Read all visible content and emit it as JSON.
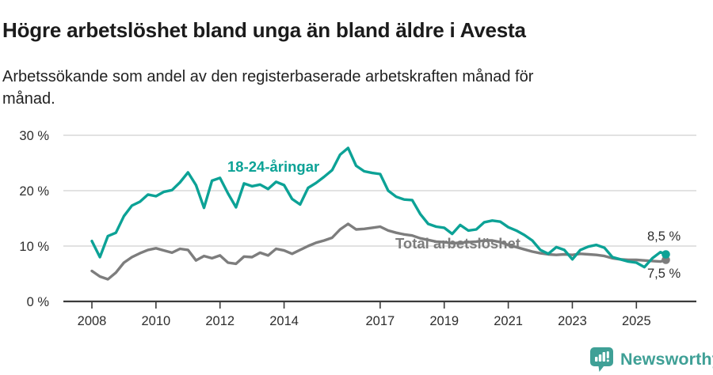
{
  "header": {
    "title": "Högre arbetslöshet bland unga än bland äldre i Avesta",
    "subtitle": "Arbetssökande som andel av den registerbaserade arbetskraften månad för månad."
  },
  "chart_data": {
    "type": "line",
    "title": "Högre arbetslöshet bland unga än bland äldre i Avesta",
    "subtitle": "Arbetssökande som andel av den registerbaserade arbetskraften månad för månad.",
    "grid": "horizontal-only",
    "legend_position": "inline-labels-on-lines",
    "ylim": [
      0,
      32
    ],
    "xlim": [
      2007.1,
      2026.9
    ],
    "y_ticks": [
      0,
      10,
      20,
      30
    ],
    "y_tick_labels": [
      "0 %",
      "10 %",
      "20 %",
      "30 %"
    ],
    "x_ticks": [
      2008,
      2010,
      2012,
      2014,
      2017,
      2019,
      2021,
      2023,
      2025
    ],
    "x_tick_labels": [
      "2008",
      "2010",
      "2012",
      "2014",
      "2017",
      "2019",
      "2021",
      "2023",
      "2025"
    ],
    "x": [
      2008,
      2008.25,
      2008.5,
      2008.75,
      2009,
      2009.25,
      2009.5,
      2009.75,
      2010,
      2010.25,
      2010.5,
      2010.75,
      2011,
      2011.25,
      2011.5,
      2011.75,
      2012,
      2012.25,
      2012.5,
      2012.75,
      2013,
      2013.25,
      2013.5,
      2013.75,
      2014,
      2014.25,
      2014.5,
      2014.75,
      2015,
      2015.25,
      2015.5,
      2015.75,
      2016,
      2016.25,
      2016.5,
      2016.75,
      2017,
      2017.25,
      2017.5,
      2017.75,
      2018,
      2018.25,
      2018.5,
      2018.75,
      2019,
      2019.25,
      2019.5,
      2019.75,
      2020,
      2020.25,
      2020.5,
      2020.75,
      2021,
      2021.25,
      2021.5,
      2021.75,
      2022,
      2022.25,
      2022.5,
      2022.75,
      2023,
      2023.25,
      2023.5,
      2023.75,
      2024,
      2024.25,
      2024.5,
      2024.75,
      2025,
      2025.25,
      2025.5,
      2025.75,
      2025.92
    ],
    "series": [
      {
        "name": "Total arbetslöshet",
        "color": "#7d7d7d",
        "end_label": "7,5 %",
        "end_value": 7.5,
        "values": [
          5.5,
          4.5,
          4.0,
          5.2,
          7.0,
          8.0,
          8.7,
          9.3,
          9.6,
          9.2,
          8.8,
          9.5,
          9.3,
          7.4,
          8.2,
          7.8,
          8.3,
          7.0,
          6.8,
          8.1,
          8.0,
          8.8,
          8.3,
          9.5,
          9.2,
          8.6,
          9.3,
          10.0,
          10.6,
          11.0,
          11.5,
          13.0,
          14.0,
          13.0,
          13.1,
          13.3,
          13.5,
          12.8,
          12.4,
          12.1,
          11.9,
          11.4,
          11.1,
          10.8,
          10.7,
          10.5,
          10.6,
          10.7,
          10.8,
          11.0,
          11.0,
          10.7,
          10.2,
          9.8,
          9.4,
          9.0,
          8.7,
          8.5,
          8.4,
          8.5,
          8.4,
          8.6,
          8.5,
          8.4,
          8.2,
          7.8,
          7.6,
          7.5,
          7.5,
          7.4,
          7.3,
          7.2,
          7.5
        ]
      },
      {
        "name": "18-24-åringar",
        "color": "#0ca296",
        "end_label": "8,5 %",
        "end_value": 8.5,
        "values": [
          10.9,
          8.0,
          11.8,
          12.4,
          15.4,
          17.3,
          18.0,
          19.3,
          19.0,
          19.8,
          20.1,
          21.5,
          23.3,
          21.0,
          16.9,
          21.8,
          22.3,
          19.5,
          17.0,
          21.3,
          20.8,
          21.1,
          20.3,
          21.6,
          21.0,
          18.5,
          17.5,
          20.5,
          21.4,
          22.5,
          23.7,
          26.5,
          27.7,
          24.5,
          23.5,
          23.2,
          23.0,
          20.0,
          18.9,
          18.4,
          18.3,
          15.8,
          14.0,
          13.5,
          13.3,
          12.2,
          13.8,
          12.8,
          13.0,
          14.3,
          14.6,
          14.4,
          13.4,
          12.8,
          12.0,
          11.0,
          9.3,
          8.6,
          9.8,
          9.3,
          7.6,
          9.3,
          9.9,
          10.2,
          9.7,
          8.0,
          7.6,
          7.2,
          7.0,
          6.2,
          7.8,
          8.9,
          8.5
        ]
      }
    ]
  },
  "branding": {
    "logo_text": "Newsworthy",
    "logo_color": "#3fa096"
  }
}
